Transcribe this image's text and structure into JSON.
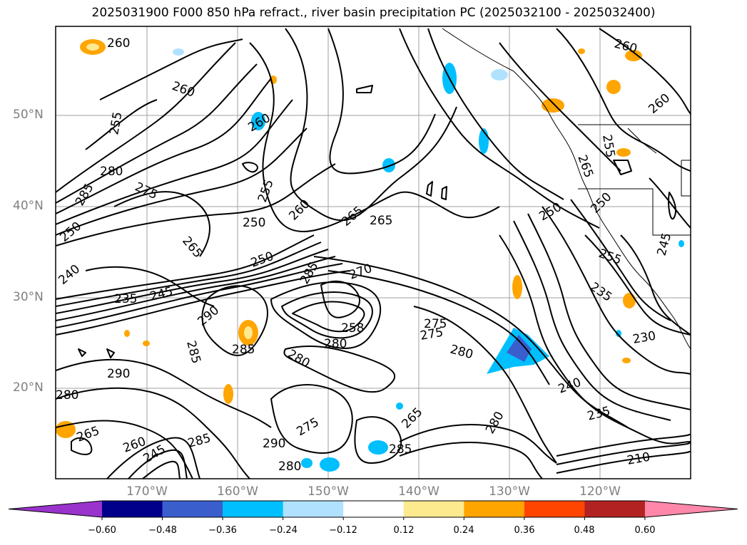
{
  "title": "2025031900 F000 850 hPa refract., river basin precipitation PC (2025032100 - 2025032400)",
  "lat_labels": [
    "50°N",
    "40°N",
    "30°N",
    "20°N"
  ],
  "lon_labels": [
    "170°W",
    "160°W",
    "150°W",
    "140°W",
    "130°W",
    "120°W"
  ],
  "colorbar": {
    "colors": [
      "#9933cc",
      "#00008b",
      "#3a5fcd",
      "#00bfff",
      "#b0e2ff",
      "#ffffff",
      "#fde98e",
      "#ffa500",
      "#ff4500",
      "#b22222",
      "#ff88aa"
    ],
    "tick_labels": [
      "−0.60",
      "−0.48",
      "−0.36",
      "−0.24",
      "−0.12",
      "0.12",
      "0.24",
      "0.36",
      "0.48",
      "0.60"
    ]
  },
  "contour_labels": [
    "260",
    "260",
    "260",
    "260",
    "255",
    "260",
    "250",
    "255",
    "280",
    "285",
    "275",
    "250",
    "265",
    "260",
    "265",
    "265",
    "250",
    "250",
    "240",
    "235",
    "245",
    "285",
    "270",
    "290",
    "285",
    "258",
    "275",
    "275",
    "280",
    "280",
    "280",
    "285",
    "290",
    "280",
    "240",
    "235",
    "230",
    "235",
    "255",
    "245",
    "250",
    "265",
    "255",
    "265",
    "285",
    "290",
    "275",
    "280",
    "285",
    "265",
    "280",
    "210",
    "260",
    "245"
  ]
}
